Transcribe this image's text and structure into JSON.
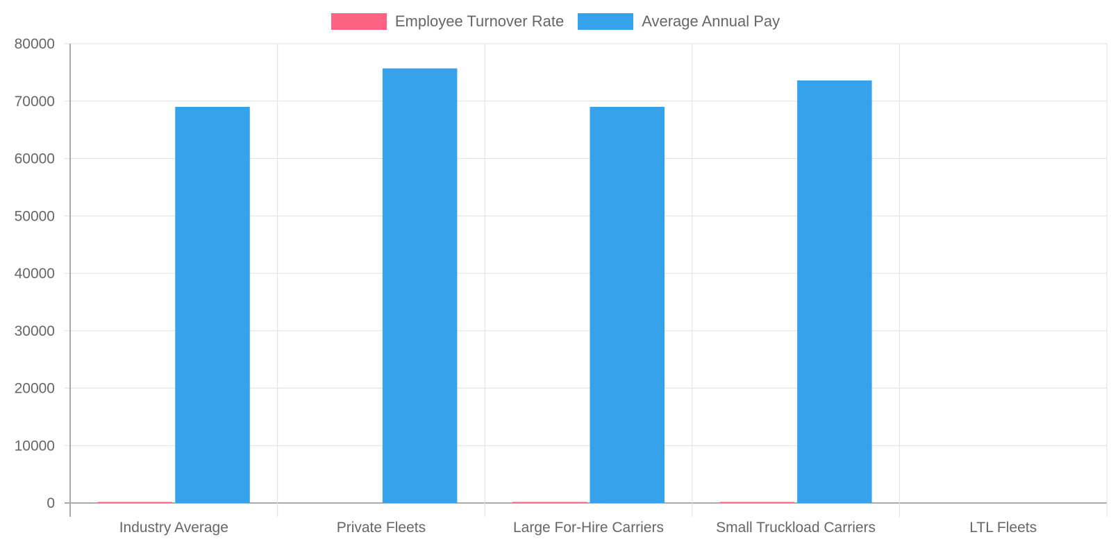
{
  "chart_data": {
    "type": "bar",
    "title": "",
    "xlabel": "",
    "ylabel": "",
    "ylim": [
      0,
      80000
    ],
    "yticks": [
      0,
      10000,
      20000,
      30000,
      40000,
      50000,
      60000,
      70000,
      80000
    ],
    "grid": true,
    "legend_position": "top",
    "categories": [
      "Industry Average",
      "Private Fleets",
      "Large For-Hire Carriers",
      "Small Truckload Carriers",
      "LTL Fleets"
    ],
    "series": [
      {
        "name": "Employee Turnover Rate",
        "color": "#ff6384",
        "values": [
          89,
          0,
          92,
          95,
          0
        ]
      },
      {
        "name": "Average Annual Pay",
        "color": "#36a2eb",
        "values": [
          69000,
          75700,
          69000,
          73600,
          0
        ]
      }
    ]
  },
  "legend": {
    "items": [
      {
        "label": "Employee Turnover Rate",
        "color": "#ff6384"
      },
      {
        "label": "Average Annual Pay",
        "color": "#36a2eb"
      }
    ]
  }
}
